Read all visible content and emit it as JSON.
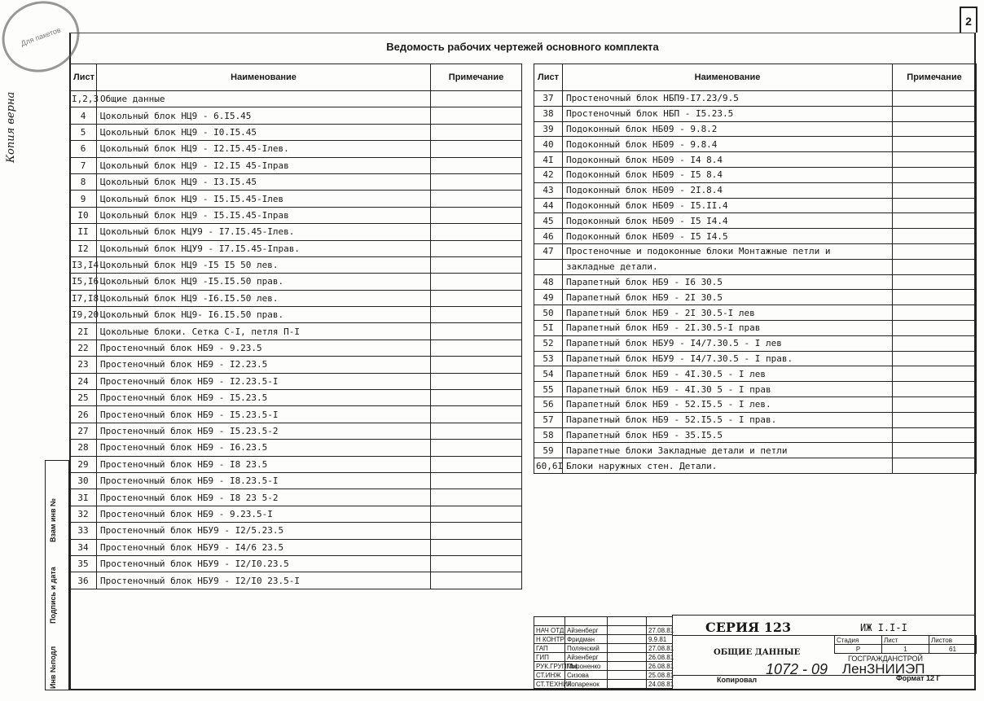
{
  "page_number": "2",
  "title": "Ведомость рабочих чертежей основного комплекта",
  "stamp_text": "Для пакетов",
  "copy_note": "Копия верна",
  "side_labels": [
    "Инв №подл",
    "Подпись и дата",
    "Взам инв №"
  ],
  "headers": {
    "sheet": "Лист",
    "name": "Наименование",
    "note": "Примечание"
  },
  "left_rows": [
    [
      "I,2,3",
      "Общие данные"
    ],
    [
      "4",
      "Цокольный блок НЦ9 - 6.I5.45"
    ],
    [
      "5",
      "Цокольный блок НЦ9 - I0.I5.45"
    ],
    [
      "6",
      "Цокольный блок НЦ9 - I2.I5.45-Iлев."
    ],
    [
      "7",
      "Цокольный блок НЦ9 - I2.I5 45-Iправ"
    ],
    [
      "8",
      "Цокольный блок НЦ9 - I3.I5.45"
    ],
    [
      "9",
      "Цокольный блок НЦ9 - I5.I5.45-Iлев"
    ],
    [
      "I0",
      "Цокольный блок НЦ9 - I5.I5.45-Iправ"
    ],
    [
      "II",
      "Цокольный блок НЦУ9 - I7.I5.45-Iлев."
    ],
    [
      "I2",
      "Цокольный блок НЦУ9 - I7.I5.45-Iправ."
    ],
    [
      "I3,I4",
      "Цокольный блок НЦ9 -I5 I5 50 лев."
    ],
    [
      "I5,I6",
      "Цокольный блок НЦ9 -I5.I5.50 прав."
    ],
    [
      "I7,I8",
      "Цокольный блок НЦ9 -I6.I5.50 лев."
    ],
    [
      "I9,20",
      "Цокольный блок НЦ9- I6.I5.50 прав."
    ],
    [
      "2I",
      "Цокольные блоки. Сетка С-I, петля П-I"
    ],
    [
      "22",
      "Простеночный блок НБ9 - 9.23.5"
    ],
    [
      "23",
      "Простеночный блок НБ9 - I2.23.5"
    ],
    [
      "24",
      "Простеночный блок НБ9 - I2.23.5-I"
    ],
    [
      "25",
      "Простеночный блок НБ9 - I5.23.5"
    ],
    [
      "26",
      "Простеночный блок НБ9 - I5.23.5-I"
    ],
    [
      "27",
      "Простеночный блок НБ9 - I5.23.5-2"
    ],
    [
      "28",
      "Простеночный блок НБ9 - I6.23.5"
    ],
    [
      "29",
      "Простеночный блок НБ9 - I8 23.5"
    ],
    [
      "30",
      "Простеночный блок НБ9 - I8.23.5-I"
    ],
    [
      "3I",
      "Простеночный блок НБ9 - I8 23 5-2"
    ],
    [
      "32",
      "Простеночный блок НБ9 - 9.23.5-I"
    ],
    [
      "33",
      "Простеночный блок НБУ9 - I2/5.23.5"
    ],
    [
      "34",
      "Простеночный блок НБУ9 - I4/6 23.5"
    ],
    [
      "35",
      "Простеночный блок НБУ9 - I2/I0.23.5"
    ],
    [
      "36",
      "Простеночный блок НБУ9 - I2/I0 23.5-I"
    ]
  ],
  "right_rows": [
    [
      "37",
      "Простеночный блок НБП9-I7.23/9.5"
    ],
    [
      "38",
      "Простеночный блок НБП - I5.23.5"
    ],
    [
      "39",
      "Подоконный блок НБ09 - 9.8.2"
    ],
    [
      "40",
      "Подоконный блок НБ09 - 9.8.4"
    ],
    [
      "4I",
      "Подоконный блок НБ09 - I4 8.4"
    ],
    [
      "42",
      "Подоконный блок НБ09 - I5 8.4"
    ],
    [
      "43",
      "Подоконный блок НБ09 - 2I.8.4"
    ],
    [
      "44",
      "Подоконный блок НБ09 - I5.II.4"
    ],
    [
      "45",
      "Подоконный блок НБ09 - I5 I4.4"
    ],
    [
      "46",
      "Подоконный блок НБ09 - I5 I4.5"
    ],
    [
      "47",
      "Простеночные и подоконные блоки Монтажные петли и"
    ],
    [
      "",
      "закладные детали."
    ],
    [
      "48",
      "Парапетный блок НБ9 - I6 30.5"
    ],
    [
      "49",
      "Парапетный блок НБ9 - 2I 30.5"
    ],
    [
      "50",
      "Парапетный блок НБ9 - 2I 30.5-I лев"
    ],
    [
      "5I",
      "Парапетный блок НБ9 - 2I.30.5-I прав"
    ],
    [
      "52",
      "Парапетный блок НБУ9 - I4/7.30.5 - I лев"
    ],
    [
      "53",
      "Парапетный блок НБУ9 - I4/7.30.5 - I прав."
    ],
    [
      "54",
      "Парапетный блок НБ9 - 4I.30.5 - I лев"
    ],
    [
      "55",
      "Парапетный блок НБ9 - 4I.30 5 - I прав"
    ],
    [
      "56",
      "Парапетный блок НБ9 - 52.I5.5 - I лев."
    ],
    [
      "57",
      "Парапетный блок НБ9 - 52.I5.5 - I прав."
    ],
    [
      "58",
      "Парапетный блок НБ9 - 35.I5.5"
    ],
    [
      "59",
      "Парапетные блоки Закладные детали и петли"
    ],
    [
      "60,6I",
      "Блоки наружных стен. Детали."
    ]
  ],
  "title_block": {
    "staff": [
      [
        "НАЧ ОТД",
        "Айзенберг",
        "27.08.81"
      ],
      [
        "Н КОНТР",
        "Фридман",
        "9.9.81"
      ],
      [
        "ГАП",
        "Полянский",
        "27.08.81"
      ],
      [
        "ГИП",
        "Айзенберг",
        "26.08.81"
      ],
      [
        "РУК.ГРУППЫ",
        "Мироненко",
        "26.08.81"
      ],
      [
        "СТ.ИНЖ",
        "Сизова",
        "25.08.81"
      ],
      [
        "СТ.ТЕХНИК",
        "Лопаренок",
        "24.08.81"
      ]
    ],
    "series": "СЕРИЯ 123",
    "code": "ИЖ I.I-I",
    "sheet_title": "ОБЩИЕ ДАННЫЕ",
    "stage_label": "Стадия",
    "sheet_label": "Лист",
    "sheets_label": "Листов",
    "stage": "Р",
    "sheet": "1",
    "sheets": "61",
    "org1": "ГОСГРАЖДАНСТРОЙ",
    "org2": "ЛенЗНИИЭП"
  },
  "footer": {
    "copied": "Копировал",
    "number": "1072 - 09",
    "format": "Формат 12 Г"
  }
}
